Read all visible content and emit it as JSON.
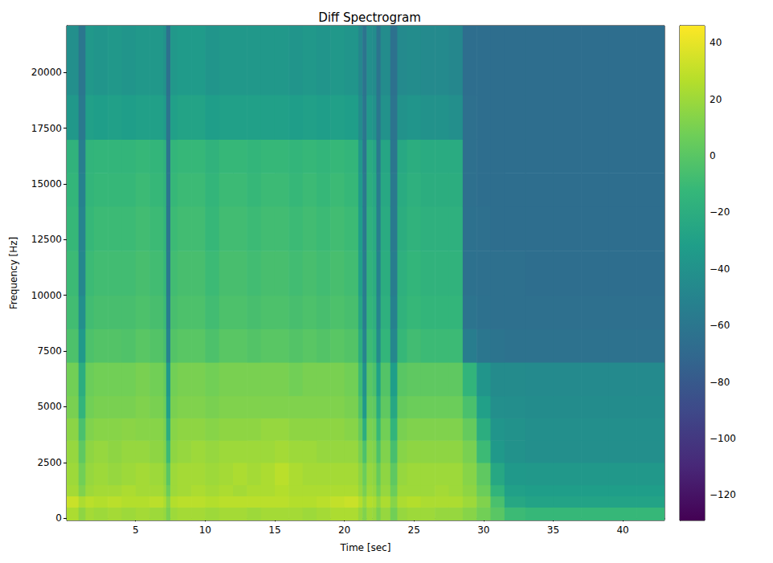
{
  "chart_data": {
    "type": "heatmap",
    "title": "Diff Spectrogram",
    "x_label": "Time [sec]",
    "y_label": "Frequency [Hz]",
    "xlim": [
      0.05,
      43
    ],
    "ylim": [
      -100,
      22100
    ],
    "xticks": [
      5,
      10,
      15,
      20,
      25,
      30,
      35,
      40
    ],
    "yticks": [
      0,
      2500,
      5000,
      7500,
      10000,
      12500,
      15000,
      17500,
      20000
    ],
    "grid": false,
    "x_edges": [
      0.05,
      0.9,
      1.4,
      2,
      3,
      4,
      5,
      6,
      7,
      7.2,
      7.5,
      8,
      9,
      10,
      11,
      12,
      13,
      14,
      15,
      16,
      17,
      18,
      19,
      20,
      21,
      21.3,
      21.6,
      22,
      22.3,
      22.6,
      23.3,
      23.8,
      24.5,
      25.5,
      26.5,
      27.5,
      28.5,
      29.5,
      30.5,
      31.5,
      33,
      35,
      37,
      39,
      41,
      43
    ],
    "y_edges": [
      -100,
      500,
      1000,
      1500,
      2500,
      3500,
      4500,
      5500,
      7000,
      8500,
      10000,
      12000,
      14000,
      15500,
      17000,
      19000,
      22100
    ],
    "z": [
      [
        24,
        32,
        22,
        20,
        18,
        15,
        10,
        8,
        -4,
        -8,
        -10,
        -12,
        -14,
        -16,
        -36,
        -42
      ],
      [
        16,
        24,
        12,
        8,
        2,
        -5,
        -15,
        -20,
        -35,
        -42,
        -48,
        -50,
        -52,
        -54,
        -58,
        -60
      ],
      [
        22,
        28,
        20,
        18,
        16,
        12,
        8,
        6,
        -4,
        -8,
        -10,
        -12,
        -14,
        -15,
        -30,
        -36
      ],
      [
        20,
        26,
        22,
        20,
        18,
        14,
        10,
        8,
        -2,
        -6,
        -8,
        -10,
        -12,
        -14,
        -32,
        -38
      ],
      [
        22,
        28,
        22,
        18,
        16,
        14,
        10,
        8,
        -2,
        -6,
        -8,
        -10,
        -12,
        -14,
        -30,
        -36
      ],
      [
        20,
        26,
        24,
        20,
        18,
        15,
        10,
        8,
        -3,
        -6,
        -8,
        -10,
        -12,
        -14,
        -32,
        -38
      ],
      [
        22,
        26,
        22,
        22,
        18,
        14,
        12,
        10,
        0,
        -4,
        -6,
        -8,
        -10,
        -12,
        -30,
        -36
      ],
      [
        20,
        28,
        22,
        20,
        16,
        14,
        10,
        8,
        -2,
        -6,
        -8,
        -10,
        -12,
        -14,
        -30,
        -36
      ],
      [
        18,
        24,
        18,
        16,
        12,
        10,
        6,
        4,
        -6,
        -10,
        -12,
        -14,
        -16,
        -18,
        -34,
        -40
      ],
      [
        10,
        14,
        6,
        0,
        -10,
        -20,
        -30,
        -35,
        -50,
        -55,
        -58,
        -60,
        -60,
        -62,
        -62,
        -64
      ],
      [
        20,
        26,
        20,
        20,
        16,
        14,
        10,
        8,
        -2,
        -6,
        -8,
        -10,
        -12,
        -14,
        -30,
        -36
      ],
      [
        22,
        28,
        22,
        22,
        18,
        16,
        12,
        10,
        0,
        -4,
        -6,
        -8,
        -10,
        -12,
        -28,
        -34
      ],
      [
        22,
        28,
        24,
        22,
        20,
        16,
        12,
        10,
        0,
        -4,
        -6,
        -8,
        -10,
        -12,
        -28,
        -34
      ],
      [
        20,
        26,
        22,
        20,
        18,
        14,
        10,
        8,
        -4,
        -8,
        -10,
        -12,
        -14,
        -16,
        -32,
        -38
      ],
      [
        22,
        28,
        24,
        22,
        20,
        16,
        12,
        10,
        0,
        -4,
        -6,
        -8,
        -10,
        -12,
        -30,
        -36
      ],
      [
        22,
        28,
        22,
        24,
        20,
        16,
        12,
        10,
        0,
        -4,
        -6,
        -8,
        -10,
        -12,
        -30,
        -36
      ],
      [
        20,
        28,
        24,
        22,
        20,
        16,
        12,
        10,
        -2,
        -6,
        -8,
        -10,
        -12,
        -14,
        -30,
        -36
      ],
      [
        22,
        28,
        24,
        24,
        20,
        18,
        12,
        10,
        0,
        -4,
        -6,
        -8,
        -10,
        -12,
        -30,
        -36
      ],
      [
        22,
        28,
        26,
        28,
        22,
        18,
        12,
        10,
        0,
        -4,
        -6,
        -8,
        -10,
        -12,
        -30,
        -36
      ],
      [
        22,
        26,
        24,
        24,
        20,
        16,
        12,
        8,
        -2,
        -6,
        -8,
        -10,
        -12,
        -14,
        -32,
        -38
      ],
      [
        20,
        26,
        24,
        22,
        20,
        16,
        12,
        10,
        0,
        -4,
        -6,
        -8,
        -10,
        -12,
        -30,
        -36
      ],
      [
        22,
        28,
        24,
        22,
        18,
        16,
        12,
        10,
        -2,
        -6,
        -8,
        -10,
        -12,
        -14,
        -32,
        -38
      ],
      [
        24,
        30,
        24,
        22,
        18,
        16,
        12,
        10,
        0,
        -4,
        -6,
        -8,
        -10,
        -12,
        -30,
        -36
      ],
      [
        24,
        32,
        24,
        22,
        18,
        14,
        10,
        8,
        -2,
        -6,
        -8,
        -10,
        -12,
        -14,
        -32,
        -38
      ],
      [
        18,
        26,
        18,
        16,
        10,
        4,
        -4,
        -10,
        -20,
        -26,
        -30,
        -32,
        -34,
        -36,
        -44,
        -48
      ],
      [
        12,
        18,
        10,
        6,
        -4,
        -20,
        -35,
        -40,
        -50,
        -54,
        -56,
        -58,
        -58,
        -60,
        -60,
        -62
      ],
      [
        20,
        26,
        20,
        18,
        14,
        10,
        4,
        0,
        -10,
        -14,
        -16,
        -18,
        -20,
        -22,
        -36,
        -42
      ],
      [
        18,
        24,
        18,
        16,
        12,
        8,
        2,
        -4,
        -14,
        -18,
        -20,
        -22,
        -24,
        -26,
        -40,
        -44
      ],
      [
        10,
        16,
        8,
        4,
        -4,
        -12,
        -22,
        -30,
        -45,
        -50,
        -52,
        -54,
        -56,
        -58,
        -60,
        -62
      ],
      [
        18,
        24,
        18,
        16,
        12,
        8,
        2,
        -2,
        -14,
        -18,
        -20,
        -22,
        -24,
        -26,
        -40,
        -44
      ],
      [
        8,
        14,
        6,
        2,
        -6,
        -15,
        -25,
        -32,
        -48,
        -52,
        -55,
        -57,
        -58,
        -60,
        -62,
        -64
      ],
      [
        18,
        24,
        20,
        18,
        14,
        10,
        4,
        0,
        -12,
        -16,
        -18,
        -20,
        -22,
        -24,
        -40,
        -46
      ],
      [
        20,
        26,
        20,
        20,
        16,
        12,
        6,
        2,
        -8,
        -12,
        -14,
        -16,
        -18,
        -20,
        -38,
        -44
      ],
      [
        20,
        24,
        20,
        20,
        16,
        12,
        6,
        2,
        -10,
        -14,
        -16,
        -18,
        -20,
        -22,
        -40,
        -46
      ],
      [
        18,
        24,
        22,
        20,
        16,
        12,
        6,
        2,
        -10,
        -14,
        -16,
        -18,
        -20,
        -22,
        -40,
        -46
      ],
      [
        18,
        24,
        20,
        20,
        16,
        12,
        6,
        2,
        -10,
        -14,
        -16,
        -18,
        -20,
        -22,
        -42,
        -48
      ],
      [
        14,
        20,
        16,
        14,
        10,
        4,
        -5,
        -15,
        -55,
        -62,
        -64,
        -64,
        -65,
        -65,
        -65,
        -66
      ],
      [
        8,
        12,
        6,
        2,
        -10,
        -20,
        -30,
        -38,
        -60,
        -64,
        -65,
        -65,
        -66,
        -66,
        -66,
        -66
      ],
      [
        0,
        -5,
        -15,
        -25,
        -35,
        -38,
        -42,
        -45,
        -62,
        -65,
        -65,
        -66,
        -66,
        -66,
        -66,
        -66
      ],
      [
        -10,
        -25,
        -30,
        -35,
        -40,
        -40,
        -43,
        -45,
        -63,
        -65,
        -65,
        -66,
        -66,
        -66,
        -66,
        -66
      ],
      [
        -12,
        -28,
        -32,
        -36,
        -42,
        -42,
        -44,
        -46,
        -63,
        -65,
        -66,
        -66,
        -66,
        -66,
        -66,
        -66
      ],
      [
        -12,
        -28,
        -32,
        -36,
        -42,
        -42,
        -44,
        -46,
        -63,
        -65,
        -66,
        -66,
        -66,
        -66,
        -66,
        -66
      ],
      [
        -12,
        -28,
        -32,
        -36,
        -42,
        -42,
        -44,
        -46,
        -63,
        -65,
        -66,
        -66,
        -66,
        -66,
        -66,
        -66
      ],
      [
        -12,
        -28,
        -32,
        -36,
        -42,
        -42,
        -44,
        -46,
        -63,
        -65,
        -66,
        -66,
        -66,
        -66,
        -66,
        -66
      ],
      [
        -12,
        -28,
        -32,
        -36,
        -42,
        -42,
        -44,
        -46,
        -63,
        -65,
        -66,
        -66,
        -66,
        -66,
        -66,
        -66
      ]
    ],
    "colorbar": {
      "range": [
        -129,
        46
      ],
      "ticks": [
        {
          "value": -120,
          "label": "−120"
        },
        {
          "value": -100,
          "label": "−100"
        },
        {
          "value": -80,
          "label": "−80"
        },
        {
          "value": -60,
          "label": "−60"
        },
        {
          "value": -40,
          "label": "−40"
        },
        {
          "value": -20,
          "label": "−20"
        },
        0,
        20,
        40
      ]
    }
  }
}
